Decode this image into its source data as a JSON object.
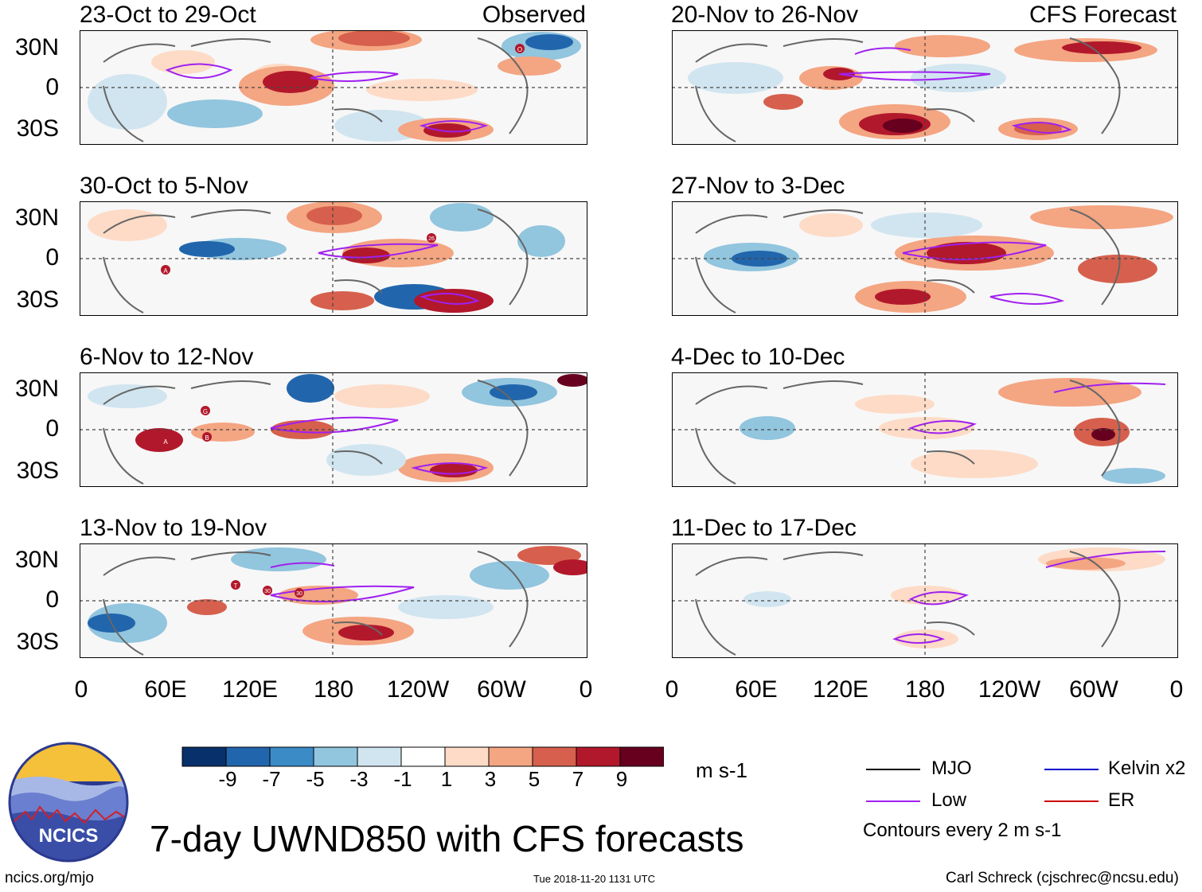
{
  "panels": [
    {
      "title": "23-Oct to 29-Oct",
      "tag": "Observed"
    },
    {
      "title": "20-Nov to 26-Nov",
      "tag": "CFS Forecast"
    },
    {
      "title": "30-Oct to 5-Nov",
      "tag": ""
    },
    {
      "title": "27-Nov to 3-Dec",
      "tag": ""
    },
    {
      "title": "6-Nov to 12-Nov",
      "tag": ""
    },
    {
      "title": "4-Dec to 10-Dec",
      "tag": ""
    },
    {
      "title": "13-Nov to 19-Nov",
      "tag": ""
    },
    {
      "title": "11-Dec to 17-Dec",
      "tag": ""
    }
  ],
  "lat_labels": [
    "30N",
    "0",
    "30S"
  ],
  "lon_labels": [
    "0",
    "60E",
    "120E",
    "180",
    "120W",
    "60W",
    "0"
  ],
  "storm_markers": [
    "O",
    "26",
    "A",
    "G",
    "A",
    "B",
    "T",
    "30",
    "30"
  ],
  "colorbar": {
    "colors": [
      "#08306b",
      "#2166ac",
      "#3a8bc6",
      "#92c5de",
      "#d1e5f0",
      "#ffffff",
      "#fddbc7",
      "#f4a582",
      "#d6604d",
      "#b2182b",
      "#67001f"
    ],
    "labels": [
      "-9",
      "-7",
      "-5",
      "-3",
      "-1",
      "1",
      "3",
      "5",
      "7",
      "9"
    ],
    "units": "m s-1"
  },
  "legend": {
    "items": [
      {
        "label": "MJO",
        "color": "#000000"
      },
      {
        "label": "Kelvin x2",
        "color": "#0000cc"
      },
      {
        "label": "Low",
        "color": "#a020f0"
      },
      {
        "label": "ER",
        "color": "#cc0000"
      }
    ],
    "note": "Contours every 2 m s-1"
  },
  "logo_text": "NCICS",
  "main_title": "7-day UWND850 with CFS forecasts",
  "footer": {
    "url": "ncics.org/mjo",
    "timestamp": "Tue 2018-11-20 1131 UTC",
    "credit": "Carl Schreck (cjschrec@ncsu.edu)"
  }
}
